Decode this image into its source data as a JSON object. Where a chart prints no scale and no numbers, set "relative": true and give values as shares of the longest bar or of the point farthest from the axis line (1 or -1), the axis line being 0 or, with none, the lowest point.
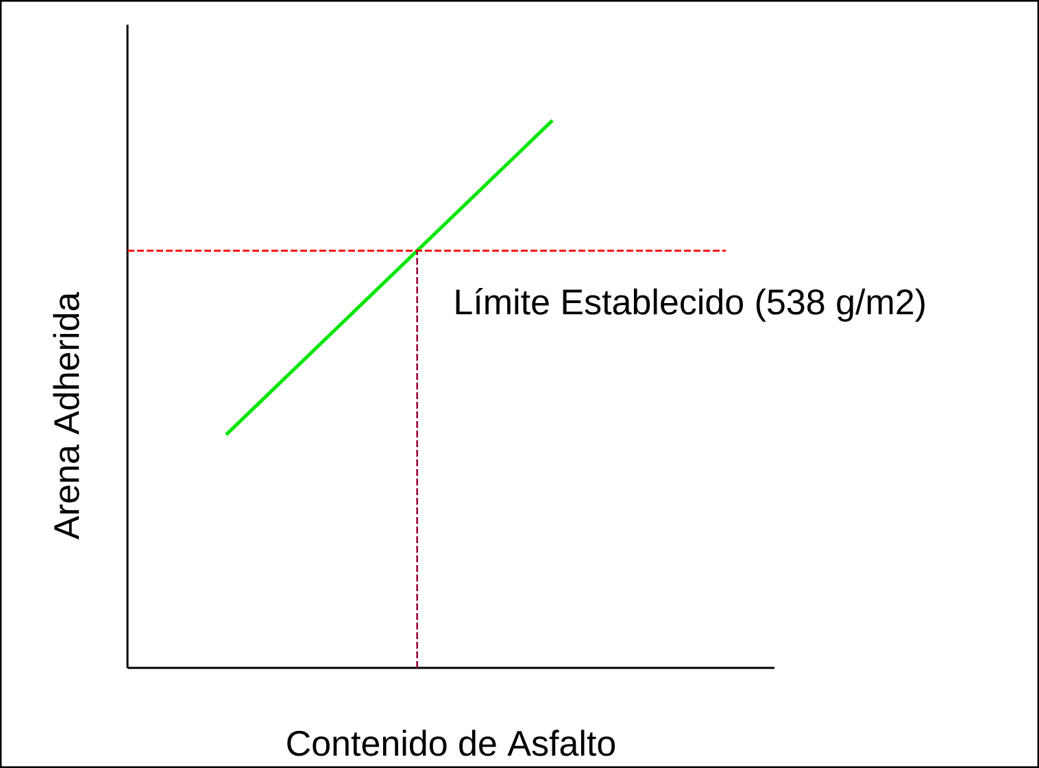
{
  "chart_data": {
    "type": "line",
    "xlabel": "Contenido de Asfalto",
    "ylabel": "Arena Adherida",
    "categories": [
      null,
      null
    ],
    "relative": true,
    "series": [
      {
        "color": "#00e600",
        "values": [
          0.426,
          1
        ]
      }
    ],
    "ref_lines": [
      {
        "axis": "y",
        "value": 0.762,
        "label": "Límite Establecido (538 g/m2)",
        "color": "#ff0000",
        "line_style": "dashed"
      }
    ]
  }
}
